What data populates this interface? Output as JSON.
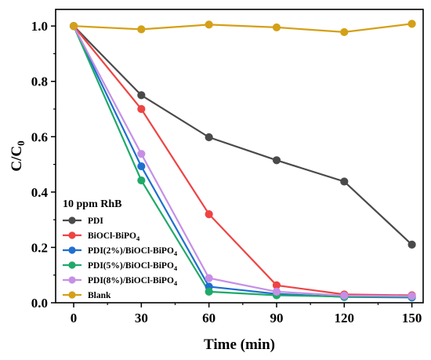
{
  "chart_data": {
    "type": "line",
    "xlabel": "Time (min)",
    "ylabel_main": "C/C",
    "ylabel_sub": "0",
    "x": [
      0,
      30,
      60,
      90,
      120,
      150
    ],
    "xlim": [
      -8,
      155
    ],
    "ylim": [
      0,
      1.06
    ],
    "x_ticks": [
      "0",
      "30",
      "60",
      "90",
      "120",
      "150"
    ],
    "y_ticks": [
      "0.0",
      "0.2",
      "0.4",
      "0.6",
      "0.8",
      "1.0"
    ],
    "legend_title": "10 ppm RhB",
    "legend_position": "center-left",
    "grid": false,
    "series": [
      {
        "name": "PDI",
        "name_main": "PDI",
        "name_sub": "",
        "color": "#4a4a4a",
        "values": [
          1.0,
          0.75,
          0.598,
          0.515,
          0.438,
          0.21
        ]
      },
      {
        "name": "BiOCl-BiPO4",
        "name_main": "BiOCl-BiPO",
        "name_sub": "4",
        "color": "#ee4444",
        "values": [
          1.0,
          0.7,
          0.32,
          0.063,
          0.03,
          0.027
        ]
      },
      {
        "name": "PDI(2%)/BiOCl-BiPO4",
        "name_main": "PDI(2%)/BiOCl-BiPO",
        "name_sub": "4",
        "color": "#1f6fd0",
        "values": [
          1.0,
          0.493,
          0.058,
          0.032,
          0.021,
          0.019
        ]
      },
      {
        "name": "PDI(5%)/BiOCl-BiPO4",
        "name_main": "PDI(5%)/BiOCl-BiPO",
        "name_sub": "4",
        "color": "#1faa6a",
        "values": [
          1.0,
          0.442,
          0.04,
          0.027,
          0.022,
          0.022
        ]
      },
      {
        "name": "PDI(8%)/BiOCl-BiPO4",
        "name_main": "PDI(8%)/BiOCl-BiPO",
        "name_sub": "4",
        "color": "#c58fe6",
        "values": [
          1.0,
          0.538,
          0.089,
          0.04,
          0.026,
          0.024
        ]
      },
      {
        "name": "Blank",
        "name_main": "Blank",
        "name_sub": "",
        "color": "#d4a017",
        "values": [
          1.0,
          0.988,
          1.005,
          0.995,
          0.978,
          1.008
        ]
      }
    ]
  }
}
